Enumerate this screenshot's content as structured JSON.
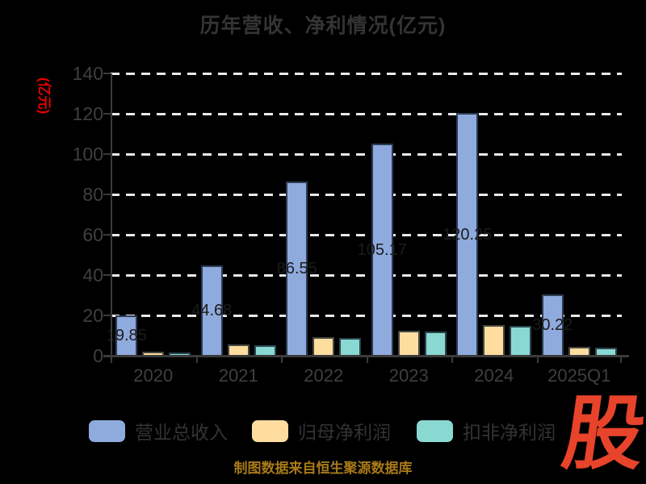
{
  "title": "历年营收、净利情况(亿元)",
  "y_axis_unit": "(亿元)",
  "source_note": "制图数据来自恒生聚源数据库",
  "logo_text": "股",
  "colors": {
    "background": "#000000",
    "title_text": "#343434",
    "axis_text": "#3f3f3f",
    "axis_line": "#3a3a3a",
    "gridline": "#eaeaea",
    "bar_value_label": "#1c1c1c",
    "y_unit_label": "#e60000",
    "source_text": "#a87a18",
    "logo_color": "#e8432b",
    "revenue_bar": "#8faadc",
    "net_profit_bar": "#ffdd9f",
    "non_gaap_profit_bar": "#8ad8d2"
  },
  "legend": {
    "items": [
      {
        "label": "营业总收入",
        "color": "#8faadc"
      },
      {
        "label": "归母净利润",
        "color": "#ffdd9f"
      },
      {
        "label": "扣非净利润",
        "color": "#8ad8d2"
      }
    ]
  },
  "chart_data": {
    "type": "bar",
    "title": "历年营收、净利情况(亿元)",
    "ylabel": "(亿元)",
    "categories": [
      "2020",
      "2021",
      "2022",
      "2023",
      "2024",
      "2025Q1"
    ],
    "series": [
      {
        "name": "营业总收入",
        "color": "#8faadc",
        "values": [
          19.85,
          44.68,
          86.55,
          105.17,
          120.25,
          30.22
        ],
        "labels": [
          "19.85",
          "44.68",
          "86.55",
          "105.17",
          "120.25",
          "30.22"
        ]
      },
      {
        "name": "归母净利润",
        "color": "#ffdd9f",
        "values": [
          2.2,
          5.6,
          9.2,
          12.3,
          15.2,
          4.4
        ]
      },
      {
        "name": "扣非净利润",
        "color": "#8ad8d2",
        "values": [
          1.8,
          5.4,
          8.8,
          12.0,
          15.0,
          4.2
        ]
      }
    ],
    "ylim": [
      0,
      140
    ],
    "yticks": [
      0,
      20,
      40,
      60,
      80,
      100,
      120,
      140
    ],
    "grid": "horizontal-dashed-white",
    "legend_position": "bottom"
  }
}
